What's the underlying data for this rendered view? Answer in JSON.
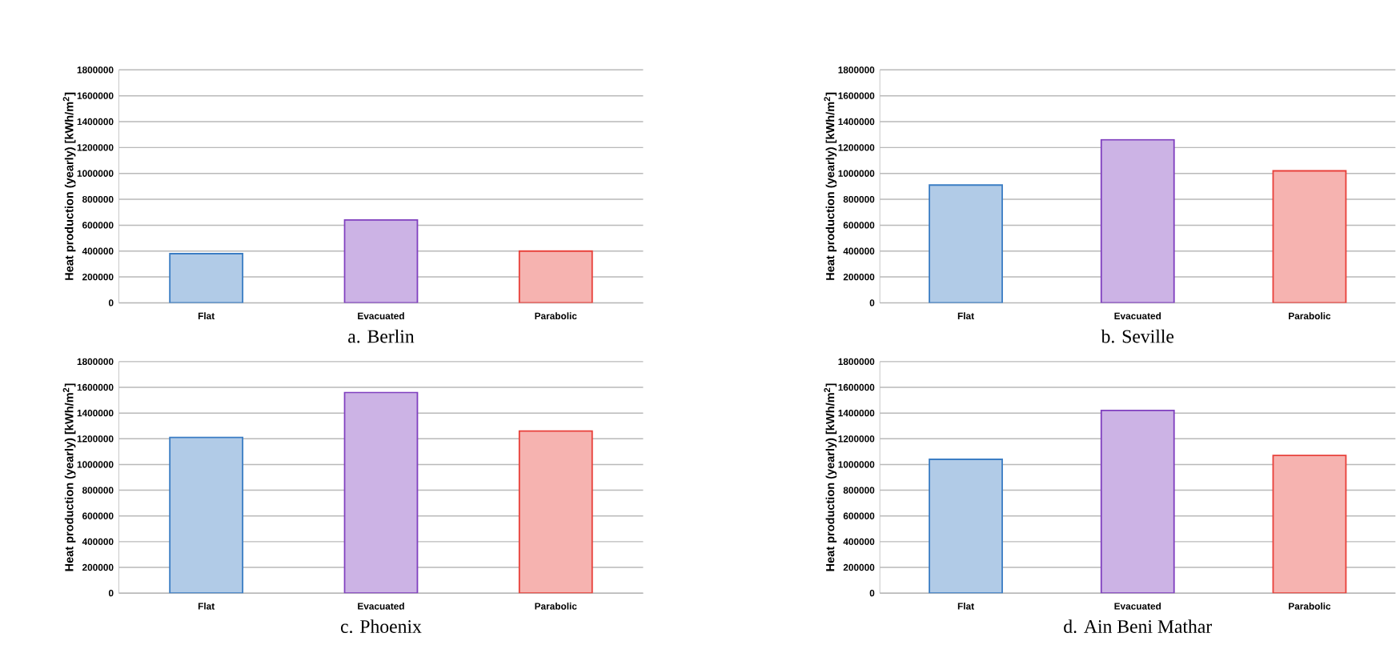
{
  "chart_data": [
    {
      "type": "bar",
      "title": "a. Berlin",
      "ylabel": "Heat production (yearly) [kWh/m$^{2}$]",
      "categories": [
        "Flat",
        "Evacuated",
        "Parabolic"
      ],
      "values": [
        380000,
        640000,
        400000
      ],
      "colors": [
        "#3b7dc4",
        "#8040bf",
        "#e8403a"
      ],
      "ylim": [
        0,
        1800000
      ],
      "yticks": [
        0,
        200000,
        400000,
        600000,
        800000,
        1000000,
        1200000,
        1400000,
        1600000,
        1800000
      ],
      "grid": "y"
    },
    {
      "type": "bar",
      "title": "b. Seville",
      "ylabel": "Heat production (yearly) [kWh/m$^{2}$]",
      "categories": [
        "Flat",
        "Evacuated",
        "Parabolic"
      ],
      "values": [
        910000,
        1260000,
        1020000
      ],
      "colors": [
        "#3b7dc4",
        "#8040bf",
        "#e8403a"
      ],
      "ylim": [
        0,
        1800000
      ],
      "yticks": [
        0,
        200000,
        400000,
        600000,
        800000,
        1000000,
        1200000,
        1400000,
        1600000,
        1800000
      ],
      "grid": "y"
    },
    {
      "type": "bar",
      "title": "c. Phoenix",
      "ylabel": "Heat production (yearly) [kWh/m$^{2}$]",
      "categories": [
        "Flat",
        "Evacuated",
        "Parabolic"
      ],
      "values": [
        1210000,
        1560000,
        1260000
      ],
      "colors": [
        "#3b7dc4",
        "#8040bf",
        "#e8403a"
      ],
      "ylim": [
        0,
        1800000
      ],
      "yticks": [
        0,
        200000,
        400000,
        600000,
        800000,
        1000000,
        1200000,
        1400000,
        1600000,
        1800000
      ],
      "grid": "y"
    },
    {
      "type": "bar",
      "title": "d. Ain Beni Mathar",
      "ylabel": "Heat production (yearly) [kWh/m$^{2}$]",
      "categories": [
        "Flat",
        "Evacuated",
        "Parabolic"
      ],
      "values": [
        1040000,
        1420000,
        1070000
      ],
      "colors": [
        "#3b7dc4",
        "#8040bf",
        "#e8403a"
      ],
      "ylim": [
        0,
        1800000
      ],
      "yticks": [
        0,
        200000,
        400000,
        600000,
        800000,
        1000000,
        1200000,
        1400000,
        1600000,
        1800000
      ],
      "grid": "y"
    }
  ]
}
